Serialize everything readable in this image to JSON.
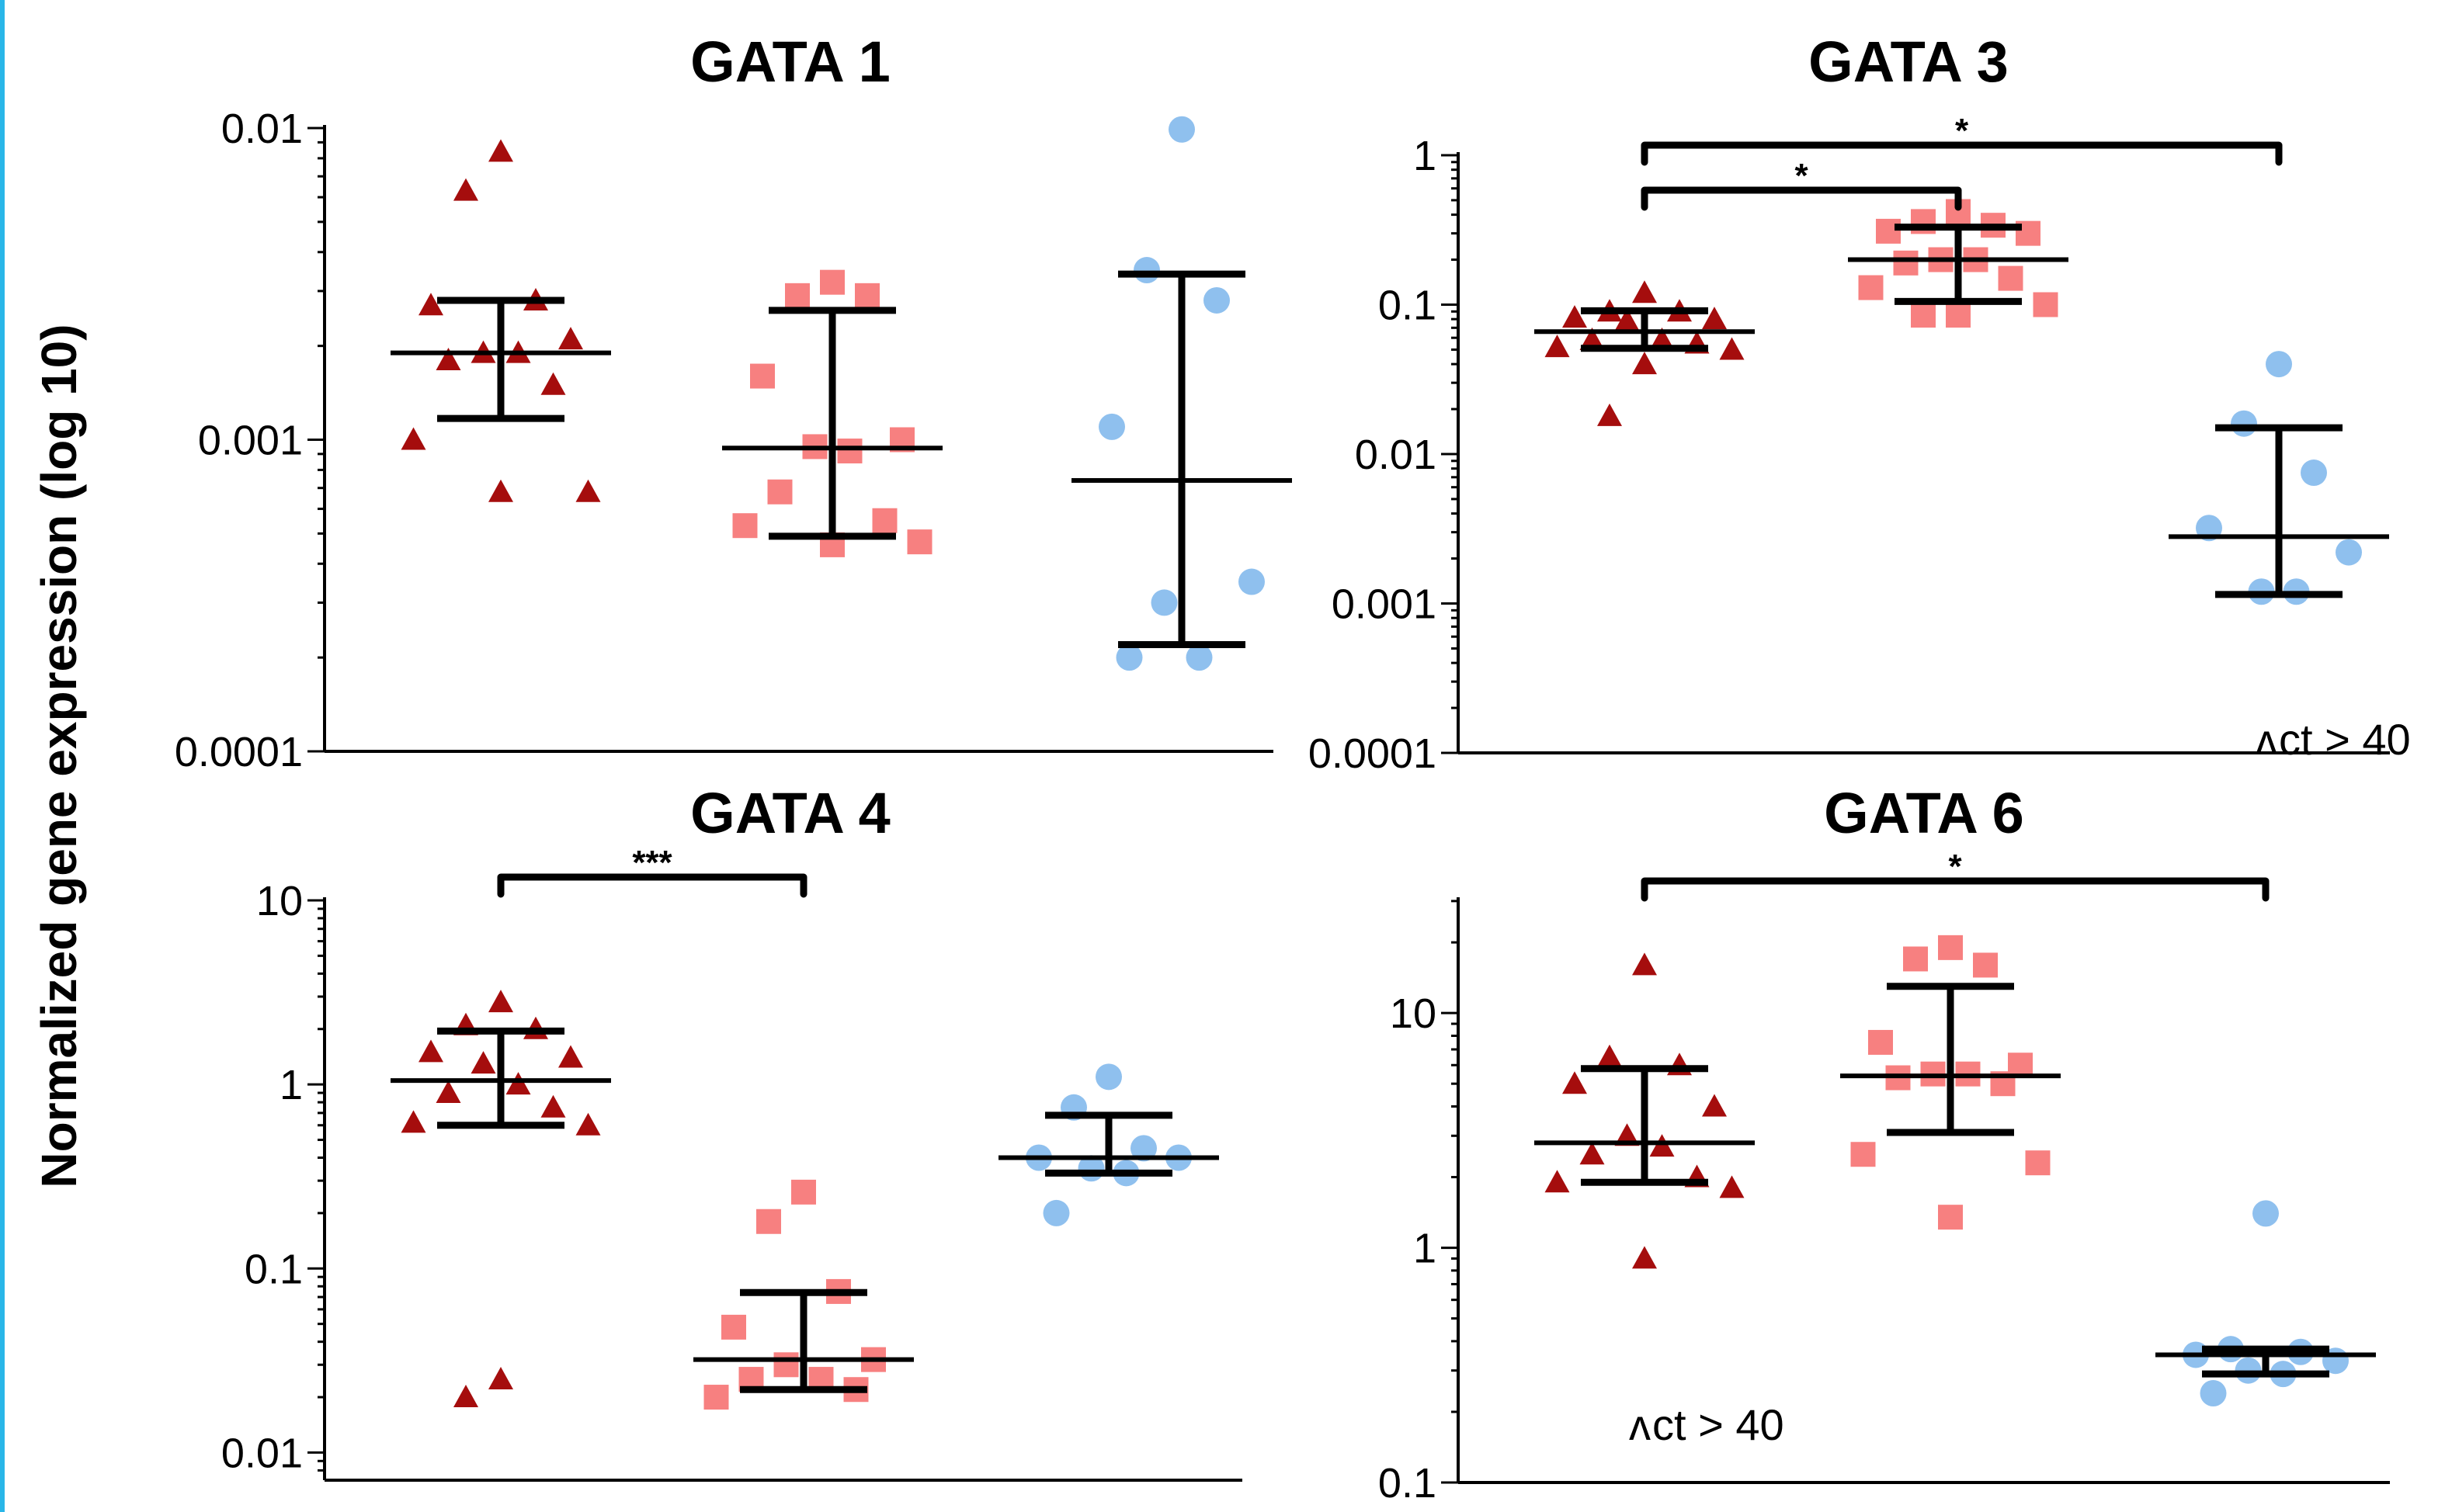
{
  "colors": {
    "series_1": "#a50d0d",
    "series_2": "#f78080",
    "series_3": "#8fc0ee",
    "frame": "#29b6e8"
  },
  "figure": {
    "ylabel": "Normalized gene expression (log 10)"
  },
  "chart_data": [
    {
      "type": "scatter",
      "title": "GATA 1",
      "xlabel": "",
      "ylabel": "Normalized gene expression (log 10)",
      "yscale": "log",
      "ylim": [
        0.0001,
        0.01
      ],
      "yticks": [
        0.0001,
        0.001,
        0.01
      ],
      "ytick_labels": [
        "0.0001",
        "0.001",
        "0.01"
      ],
      "groups": [
        {
          "marker": "triangle",
          "color": "#a50d0d",
          "values": [
            0.0084,
            0.0063,
            0.0028,
            0.0027,
            0.0021,
            0.0019,
            0.0019,
            0.0018,
            0.0015,
            0.001,
            0.00068,
            0.00068
          ],
          "mean": 0.0019,
          "error_low": 0.00117,
          "error_high": 0.0028
        },
        {
          "marker": "square",
          "color": "#f78080",
          "values": [
            0.0032,
            0.0029,
            0.0029,
            0.0016,
            0.001,
            0.00095,
            0.00092,
            0.00068,
            0.00055,
            0.00053,
            0.00047,
            0.00046
          ],
          "mean": 0.00094,
          "error_low": 0.00049,
          "error_high": 0.0026
        },
        {
          "marker": "circle",
          "color": "#8fc0ee",
          "values": [
            0.0099,
            0.0035,
            0.0028,
            0.0011,
            0.00035,
            0.0003,
            0.0002,
            0.0002
          ],
          "mean": 0.00074,
          "error_low": 0.00022,
          "error_high": 0.0034
        }
      ],
      "significance": [],
      "annotations": []
    },
    {
      "type": "scatter",
      "title": "GATA 3",
      "xlabel": "",
      "ylabel": "Normalized gene expression (log 10)",
      "yscale": "log",
      "ylim": [
        0.0001,
        1
      ],
      "yticks": [
        0.0001,
        0.001,
        0.01,
        0.1,
        1
      ],
      "ytick_labels": [
        "0.0001",
        "0.001",
        "0.01",
        "0.1",
        "1"
      ],
      "groups": [
        {
          "marker": "triangle",
          "color": "#a50d0d",
          "values": [
            0.12,
            0.09,
            0.09,
            0.082,
            0.08,
            0.078,
            0.058,
            0.058,
            0.055,
            0.052,
            0.05,
            0.04,
            0.018
          ],
          "mean": 0.066,
          "error_low": 0.051,
          "error_high": 0.091
        },
        {
          "marker": "square",
          "color": "#f78080",
          "values": [
            0.42,
            0.36,
            0.34,
            0.31,
            0.3,
            0.2,
            0.2,
            0.19,
            0.15,
            0.13,
            0.1,
            0.085,
            0.085
          ],
          "mean": 0.2,
          "error_low": 0.105,
          "error_high": 0.33
        },
        {
          "marker": "circle",
          "color": "#8fc0ee",
          "values": [
            0.04,
            0.016,
            0.0075,
            0.0032,
            0.0022,
            0.0012,
            0.0012
          ],
          "mean": 0.0028,
          "error_low": 0.00115,
          "error_high": 0.015
        }
      ],
      "significance": [
        {
          "from": 1,
          "to": 2,
          "label": "*"
        },
        {
          "from": 1,
          "to": 3,
          "label": "*"
        }
      ],
      "annotations": [
        "ct > 40"
      ]
    },
    {
      "type": "scatter",
      "title": "GATA 4",
      "xlabel": "",
      "ylabel": "Normalized gene expression (log 10)",
      "yscale": "log",
      "ylim": [
        0.007,
        10
      ],
      "yticks": [
        0.01,
        0.1,
        1,
        10
      ],
      "ytick_labels": [
        "0.01",
        "0.1",
        "1",
        "10"
      ],
      "groups": [
        {
          "marker": "triangle",
          "color": "#a50d0d",
          "values": [
            2.8,
            2.1,
            2.0,
            1.5,
            1.4,
            1.3,
            1.0,
            0.9,
            0.75,
            0.62,
            0.6,
            0.025,
            0.02
          ],
          "mean": 1.05,
          "error_low": 0.6,
          "error_high": 1.95
        },
        {
          "marker": "square",
          "color": "#f78080",
          "values": [
            0.26,
            0.18,
            0.075,
            0.048,
            0.032,
            0.03,
            0.025,
            0.025,
            0.022,
            0.02
          ],
          "mean": 0.032,
          "error_low": 0.022,
          "error_high": 0.074
        },
        {
          "marker": "circle",
          "color": "#8fc0ee",
          "values": [
            1.1,
            0.75,
            0.45,
            0.4,
            0.4,
            0.35,
            0.33,
            0.2
          ],
          "mean": 0.4,
          "error_low": 0.33,
          "error_high": 0.68
        }
      ],
      "significance": [
        {
          "from": 1,
          "to": 2,
          "label": "***"
        }
      ],
      "annotations": []
    },
    {
      "type": "scatter",
      "title": "GATA 6",
      "xlabel": "",
      "ylabel": "Normalized gene expression (log 10)",
      "yscale": "log",
      "ylim": [
        0.1,
        30
      ],
      "yticks": [
        0.1,
        1,
        10
      ],
      "ytick_labels": [
        "0.1",
        "1",
        "10"
      ],
      "groups": [
        {
          "marker": "triangle",
          "color": "#a50d0d",
          "values": [
            16,
            6.5,
            6.0,
            5.0,
            4.0,
            3.0,
            2.7,
            2.5,
            2.0,
            1.9,
            1.8,
            0.9
          ],
          "mean": 2.8,
          "error_low": 1.9,
          "error_high": 5.8
        },
        {
          "marker": "square",
          "color": "#f78080",
          "values": [
            19,
            17,
            16,
            7.5,
            6.0,
            5.5,
            5.5,
            5.3,
            5.0,
            2.5,
            2.3,
            1.35
          ],
          "mean": 5.4,
          "error_low": 3.1,
          "error_high": 13
        },
        {
          "marker": "circle",
          "color": "#8fc0ee",
          "values": [
            1.4,
            0.37,
            0.36,
            0.35,
            0.33,
            0.3,
            0.29,
            0.24
          ],
          "mean": 0.35,
          "error_low": 0.29,
          "error_high": 0.37
        }
      ],
      "significance": [
        {
          "from": 1,
          "to": 3,
          "label": "*"
        }
      ],
      "annotations": [
        "ct > 40"
      ]
    }
  ]
}
